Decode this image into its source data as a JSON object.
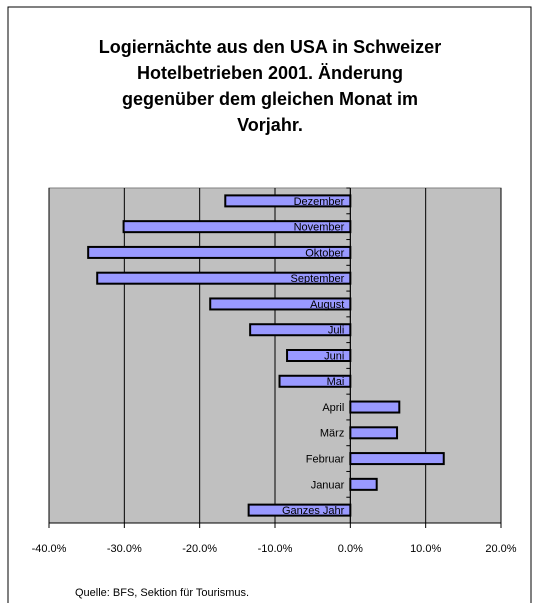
{
  "chart_data": {
    "type": "bar",
    "orientation": "horizontal",
    "title": [
      "Logiernächte aus den USA in Schweizer",
      "Hotelbetrieben  2001. Änderung",
      "gegenüber dem gleichen Monat im",
      "Vorjahr."
    ],
    "categories": [
      "Dezember",
      "November",
      "Oktober",
      "September",
      "August",
      "Juli",
      "Juni",
      "Mai",
      "April",
      "März",
      "Februar",
      "Januar",
      "Ganzes Jahr"
    ],
    "values": [
      -16.6,
      -30.1,
      -34.8,
      -33.6,
      -18.6,
      -13.3,
      -8.4,
      -9.4,
      6.5,
      6.2,
      12.4,
      3.5,
      -13.5
    ],
    "color": "#9999ff",
    "xlim": [
      -40,
      20
    ],
    "xticks": [
      {
        "value": -40,
        "label": "-40.0%"
      },
      {
        "value": -30,
        "label": "-30.0%"
      },
      {
        "value": -20,
        "label": "-20.0%"
      },
      {
        "value": -10,
        "label": "-10.0%"
      },
      {
        "value": 0,
        "label": "0.0%"
      },
      {
        "value": 10,
        "label": "10.0%"
      },
      {
        "value": 20,
        "label": "20.0%"
      }
    ],
    "grid": true,
    "source": "Quelle: BFS, Sektion für Tourismus."
  }
}
